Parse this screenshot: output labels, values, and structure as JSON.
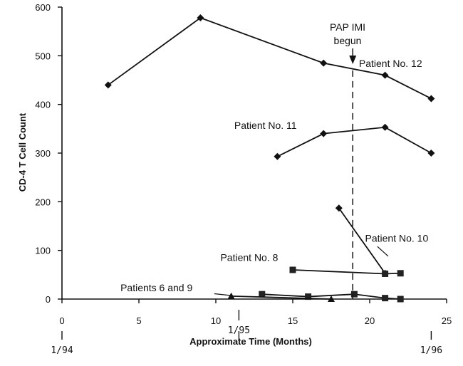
{
  "chart_data": {
    "type": "line",
    "xlabel": "Approximate Time    (Months)",
    "ylabel": "CD-4 T Cell Count",
    "xlim": [
      0,
      25
    ],
    "ylim": [
      0,
      600
    ],
    "xticks": [
      0,
      5,
      10,
      15,
      20,
      25
    ],
    "yticks": [
      0,
      100,
      200,
      300,
      400,
      500,
      600
    ],
    "date_ticks": [
      {
        "x": 0,
        "label": "1/94"
      },
      {
        "x": 11.5,
        "label": "1/95"
      },
      {
        "x": 24,
        "label": "1/96"
      }
    ],
    "event_line": {
      "x": 18.9,
      "label_line1": "PAP IMI",
      "label_line2": "begun"
    },
    "series": [
      {
        "name": "Patient No. 12",
        "marker": "diamond",
        "x": [
          3,
          9,
          17,
          21,
          24
        ],
        "y": [
          440,
          578,
          485,
          460,
          412
        ]
      },
      {
        "name": "Patient No. 11",
        "marker": "diamond",
        "x": [
          14,
          17,
          21,
          24
        ],
        "y": [
          293,
          340,
          353,
          300
        ]
      },
      {
        "name": "Patient No. 10",
        "marker": "diamond",
        "x": [
          18,
          21
        ],
        "y": [
          187,
          53
        ]
      },
      {
        "name": "Patient No. 8",
        "marker": "square",
        "x": [
          15,
          21,
          22
        ],
        "y": [
          60,
          52,
          53
        ]
      },
      {
        "name": "Patients 6 and 9",
        "marker": "square",
        "x": [
          13,
          16,
          19,
          21,
          22
        ],
        "y": [
          10,
          5,
          10,
          2,
          0
        ]
      },
      {
        "name": "Patients 6 and 9",
        "marker": "triangle",
        "x": [
          11,
          17.5
        ],
        "y": [
          6,
          0
        ]
      }
    ],
    "annotations": [
      {
        "text": "Patient No. 12",
        "at": [
          19.3,
          477
        ],
        "pointer": false
      },
      {
        "text": "Patient No. 11",
        "at": [
          11.2,
          350
        ],
        "pointer": false
      },
      {
        "text": "Patient No. 10",
        "at": [
          19.7,
          118
        ],
        "pointer": true
      },
      {
        "text": "Patient No. 8",
        "at": [
          10.3,
          78
        ],
        "pointer": false
      },
      {
        "text": "Patients 6 and 9",
        "at": [
          3.8,
          16
        ],
        "pointer": true
      }
    ]
  }
}
